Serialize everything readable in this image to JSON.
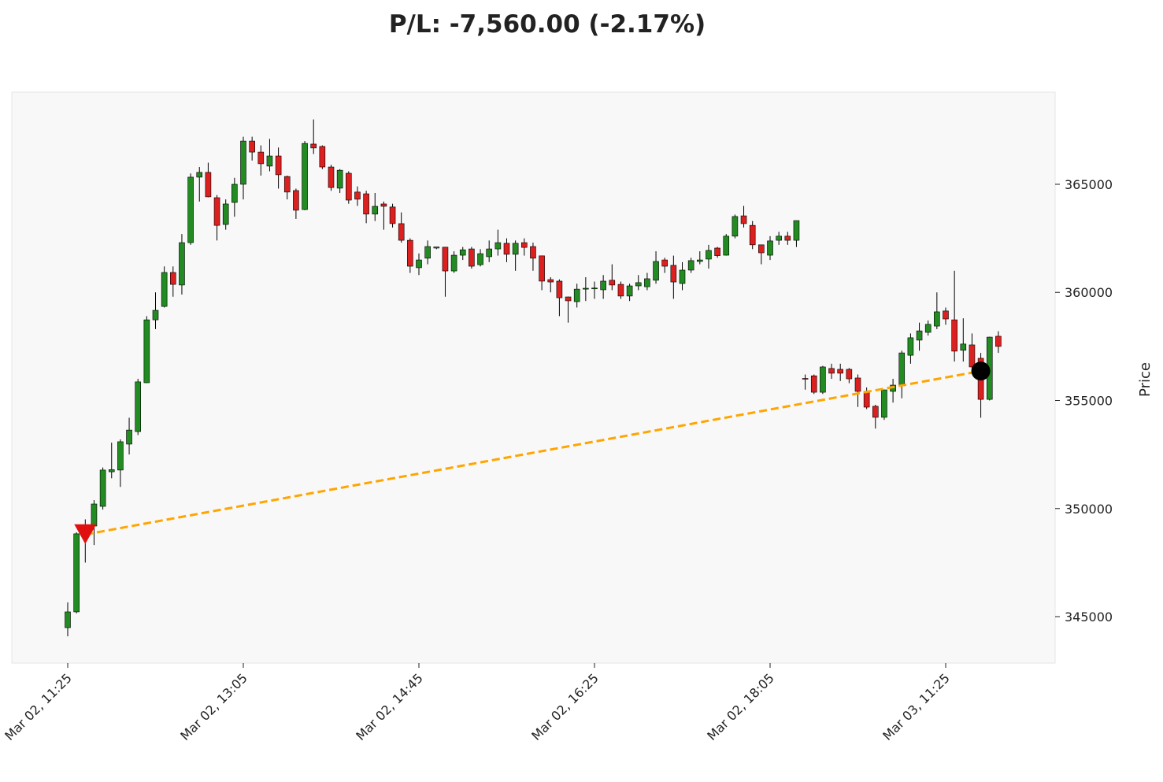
{
  "chart_data": {
    "type": "candlestick",
    "title": "P/L: -7,560.00 (-2.17%)",
    "ylabel": "Price",
    "categories": [
      "Mar 02, 11:25",
      null,
      null,
      null,
      null,
      null,
      null,
      null,
      null,
      null,
      null,
      null,
      null,
      null,
      null,
      null,
      null,
      null,
      null,
      null,
      "Mar 02, 13:05",
      null,
      null,
      null,
      null,
      null,
      null,
      null,
      null,
      null,
      null,
      null,
      null,
      null,
      null,
      null,
      null,
      null,
      null,
      null,
      "Mar 02, 14:45",
      null,
      null,
      null,
      null,
      null,
      null,
      null,
      null,
      null,
      null,
      null,
      null,
      null,
      null,
      null,
      null,
      null,
      null,
      null,
      "Mar 02, 16:25",
      null,
      null,
      null,
      null,
      null,
      null,
      null,
      null,
      null,
      null,
      null,
      null,
      null,
      null,
      null,
      null,
      null,
      null,
      null,
      "Mar 02, 18:05",
      null,
      null,
      null,
      null,
      null,
      null,
      null,
      null,
      null,
      null,
      null,
      null,
      null,
      null,
      null,
      null,
      null,
      null,
      null,
      "Mar 03, 11:25",
      null,
      null,
      null,
      null,
      null,
      null
    ],
    "open": [
      344490,
      345220,
      348800,
      349190,
      350100,
      351700,
      351780,
      352980,
      353560,
      355820,
      358730,
      359350,
      360920,
      360340,
      362300,
      365330,
      365550,
      364380,
      363140,
      364160,
      365000,
      367000,
      366490,
      365840,
      366310,
      365360,
      364710,
      363830,
      366860,
      366750,
      365800,
      364820,
      365510,
      364640,
      364560,
      363620,
      364090,
      363950,
      363180,
      362410,
      361140,
      361580,
      362050,
      362090,
      360990,
      361720,
      362010,
      361280,
      361650,
      362010,
      362270,
      361760,
      362300,
      362120,
      361690,
      360590,
      360520,
      359790,
      359570,
      360150,
      360170,
      360120,
      360560,
      360370,
      359830,
      360300,
      360260,
      360560,
      361500,
      361250,
      360410,
      361030,
      361430,
      361540,
      362050,
      361720,
      362600,
      363540,
      363100,
      362200,
      361720,
      362410,
      362600,
      362410,
      356020,
      356140,
      355380,
      356480,
      356440,
      356440,
      356040,
      355420,
      354730,
      354220,
      355420,
      355670,
      357090,
      357790,
      358150,
      358440,
      359140,
      358730,
      357320,
      357570,
      356950,
      355050,
      357970
    ],
    "high": [
      345660,
      348900,
      349500,
      350390,
      351900,
      353050,
      353200,
      354200,
      356000,
      358900,
      360000,
      361200,
      361200,
      362700,
      365500,
      365800,
      366000,
      364500,
      364300,
      365300,
      367200,
      367200,
      366800,
      367100,
      366700,
      365400,
      364800,
      367000,
      368000,
      366800,
      365900,
      365700,
      365600,
      364900,
      364700,
      364600,
      364200,
      364100,
      363700,
      362500,
      361800,
      362400,
      362100,
      362100,
      361900,
      362100,
      362100,
      362000,
      362400,
      362900,
      362500,
      362400,
      362500,
      362300,
      361700,
      360700,
      360600,
      359800,
      360400,
      360700,
      360500,
      360800,
      361300,
      360500,
      360400,
      360800,
      360900,
      361900,
      361600,
      361700,
      361400,
      361600,
      361900,
      362200,
      362100,
      362700,
      363600,
      364000,
      363300,
      362200,
      362600,
      362800,
      362800,
      363320,
      356200,
      356200,
      356600,
      356700,
      356700,
      356500,
      356200,
      355600,
      354800,
      355500,
      356000,
      357300,
      358100,
      358600,
      358700,
      360000,
      359300,
      361000,
      358800,
      358100,
      357200,
      357950,
      358200
    ],
    "low": [
      344090,
      345150,
      347500,
      348310,
      349950,
      351400,
      351000,
      352500,
      353400,
      355800,
      358300,
      359300,
      359800,
      359900,
      362200,
      364200,
      364400,
      362400,
      362900,
      363500,
      364300,
      366100,
      365400,
      365600,
      364800,
      364300,
      363400,
      363800,
      366400,
      365700,
      364700,
      364600,
      364100,
      364000,
      363200,
      363300,
      362900,
      363000,
      362300,
      360900,
      360800,
      361300,
      362000,
      359800,
      360900,
      361500,
      361100,
      361200,
      361400,
      361700,
      361400,
      361000,
      361700,
      361000,
      360100,
      360000,
      358900,
      358600,
      359300,
      359600,
      359700,
      359700,
      360100,
      359700,
      359600,
      360100,
      360100,
      360400,
      360900,
      359700,
      360100,
      360900,
      361300,
      361100,
      361600,
      361700,
      362500,
      363000,
      362000,
      361300,
      361500,
      362200,
      362200,
      362100,
      355500,
      355300,
      355300,
      356000,
      355900,
      355800,
      354700,
      354600,
      353700,
      354100,
      354900,
      355100,
      356700,
      357300,
      358000,
      358300,
      358500,
      356800,
      356800,
      356300,
      354200,
      355000,
      357200
    ],
    "close": [
      345220,
      348830,
      349000,
      350210,
      351780,
      351800,
      353090,
      353630,
      355860,
      358730,
      359170,
      360920,
      360370,
      362300,
      365330,
      365550,
      364420,
      363100,
      364090,
      365000,
      367000,
      366490,
      365950,
      366310,
      365440,
      364640,
      363800,
      366890,
      366680,
      365800,
      364850,
      365650,
      364270,
      364310,
      363620,
      363980,
      363980,
      363180,
      362410,
      361210,
      361500,
      362120,
      362100,
      360990,
      361720,
      361970,
      361210,
      361790,
      362010,
      362300,
      361760,
      362270,
      362080,
      361580,
      360520,
      360480,
      359750,
      359610,
      360150,
      360190,
      360200,
      360520,
      360340,
      359830,
      360300,
      360450,
      360630,
      361430,
      361210,
      360480,
      361030,
      361470,
      361500,
      361940,
      361700,
      362600,
      363510,
      363180,
      362200,
      361830,
      362380,
      362600,
      362410,
      363320,
      355990,
      355380,
      356550,
      356260,
      356260,
      356000,
      355420,
      354690,
      354220,
      355490,
      355710,
      357200,
      357900,
      358220,
      358520,
      359100,
      358770,
      357280,
      357610,
      356550,
      355050,
      357930,
      357500
    ],
    "up_color": "#228b22",
    "down_color": "#dc1f1f",
    "entry": {
      "index": 2,
      "price": 348800,
      "color": "#e01010"
    },
    "exit": {
      "index": 104,
      "price": 356360,
      "color": "#000000"
    },
    "trade_line_color": "#ffa500",
    "ylim": [
      342851,
      369262
    ],
    "yticks": [
      345000,
      350000,
      355000,
      360000,
      365000
    ]
  }
}
